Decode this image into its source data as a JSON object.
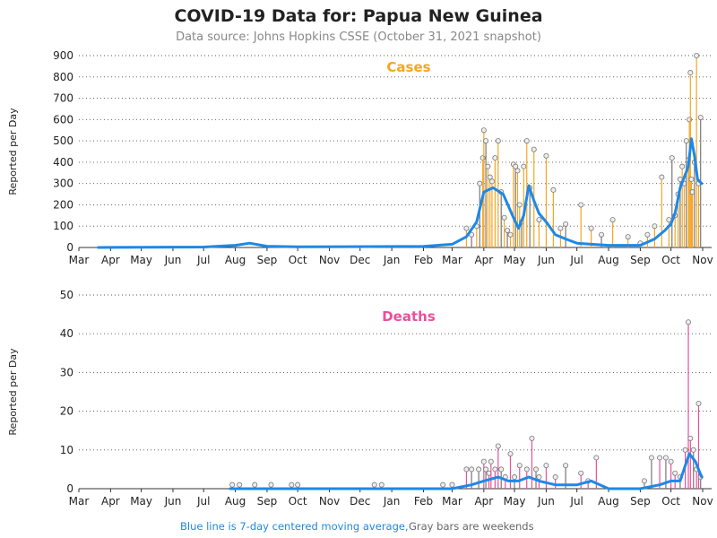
{
  "header": {
    "title": "COVID-19 Data for: Papua New Guinea",
    "subtitle": "Data source: Johns Hopkins CSSE (October 31, 2021 snapshot)"
  },
  "footer": {
    "blue_text": "Blue line is 7-day centered moving average,",
    "gray_text": "Gray bars are weekends"
  },
  "colors": {
    "cases": "#f5a623",
    "deaths": "#e8509b",
    "moving_average": "#1e88e5",
    "weekend": "#777777"
  },
  "chart_data": [
    {
      "type": "bar",
      "title": "Cases",
      "ylabel": "Reported per Day",
      "ylim": [
        0,
        900
      ],
      "yticks": [
        0,
        100,
        200,
        300,
        400,
        500,
        600,
        700,
        800,
        900
      ],
      "x_tick_labels": [
        "Mar",
        "Apr",
        "May",
        "Jun",
        "Jul",
        "Aug",
        "Sep",
        "Oct",
        "Nov",
        "Dec",
        "Jan",
        "Feb",
        "Mar",
        "Apr",
        "May",
        "Jun",
        "Jul",
        "Aug",
        "Sep",
        "Oct",
        "Nov"
      ],
      "x_range": [
        "2020-03-01",
        "2021-11-01"
      ],
      "grid": "horizontal-dotted",
      "bar_color": "#f5a623",
      "weekend_bar_color": "#777777",
      "series": [
        {
          "name": "Cases",
          "x": [
            "2021-03-15",
            "2021-03-20",
            "2021-03-25",
            "2021-03-28",
            "2021-03-31",
            "2021-04-01",
            "2021-04-03",
            "2021-04-05",
            "2021-04-07",
            "2021-04-09",
            "2021-04-12",
            "2021-04-15",
            "2021-04-18",
            "2021-04-21",
            "2021-04-24",
            "2021-04-27",
            "2021-04-30",
            "2021-05-02",
            "2021-05-04",
            "2021-05-06",
            "2021-05-08",
            "2021-05-10",
            "2021-05-13",
            "2021-05-16",
            "2021-05-20",
            "2021-05-25",
            "2021-06-01",
            "2021-06-08",
            "2021-06-15",
            "2021-06-20",
            "2021-07-05",
            "2021-07-15",
            "2021-07-25",
            "2021-08-05",
            "2021-08-20",
            "2021-09-01",
            "2021-09-08",
            "2021-09-15",
            "2021-09-22",
            "2021-09-29",
            "2021-10-02",
            "2021-10-05",
            "2021-10-08",
            "2021-10-10",
            "2021-10-12",
            "2021-10-14",
            "2021-10-16",
            "2021-10-18",
            "2021-10-19",
            "2021-10-20",
            "2021-10-21",
            "2021-10-22",
            "2021-10-24",
            "2021-10-26",
            "2021-10-28",
            "2021-10-30"
          ],
          "values": [
            90,
            60,
            100,
            300,
            420,
            550,
            500,
            380,
            330,
            310,
            420,
            500,
            260,
            140,
            80,
            60,
            390,
            380,
            360,
            200,
            120,
            380,
            500,
            280,
            460,
            130,
            430,
            270,
            90,
            110,
            200,
            90,
            60,
            130,
            50,
            20,
            60,
            100,
            330,
            130,
            420,
            150,
            250,
            320,
            380,
            300,
            500,
            410,
            600,
            820,
            320,
            260,
            400,
            900,
            300,
            610
          ]
        },
        {
          "name": "7-day average",
          "x": [
            "2020-03-20",
            "2020-07-01",
            "2020-08-01",
            "2020-08-15",
            "2020-09-01",
            "2020-10-01",
            "2021-02-01",
            "2021-03-01",
            "2021-03-15",
            "2021-03-25",
            "2021-04-01",
            "2021-04-10",
            "2021-04-20",
            "2021-04-30",
            "2021-05-05",
            "2021-05-10",
            "2021-05-15",
            "2021-05-20",
            "2021-05-25",
            "2021-06-01",
            "2021-06-10",
            "2021-06-20",
            "2021-07-01",
            "2021-07-15",
            "2021-08-01",
            "2021-09-01",
            "2021-09-15",
            "2021-09-25",
            "2021-10-01",
            "2021-10-05",
            "2021-10-10",
            "2021-10-14",
            "2021-10-18",
            "2021-10-21",
            "2021-10-24",
            "2021-10-27",
            "2021-10-31"
          ],
          "values": [
            0,
            2,
            10,
            20,
            6,
            3,
            5,
            15,
            50,
            120,
            260,
            280,
            250,
            140,
            90,
            150,
            290,
            220,
            160,
            120,
            60,
            40,
            20,
            15,
            10,
            10,
            40,
            80,
            110,
            160,
            280,
            330,
            380,
            510,
            430,
            320,
            300
          ]
        }
      ]
    },
    {
      "type": "bar",
      "title": "Deaths",
      "ylabel": "Reported per Day",
      "ylim": [
        0,
        50
      ],
      "yticks": [
        0,
        10,
        20,
        30,
        40,
        50
      ],
      "x_tick_labels": [
        "Mar",
        "Apr",
        "May",
        "Jun",
        "Jul",
        "Aug",
        "Sep",
        "Oct",
        "Nov",
        "Dec",
        "Jan",
        "Feb",
        "Mar",
        "Apr",
        "May",
        "Jun",
        "Jul",
        "Aug",
        "Sep",
        "Oct",
        "Nov"
      ],
      "x_range": [
        "2020-03-01",
        "2021-11-01"
      ],
      "grid": "horizontal-dotted",
      "bar_color": "#e8509b",
      "weekend_bar_color": "#777777",
      "series": [
        {
          "name": "Deaths",
          "x": [
            "2020-07-29",
            "2020-08-05",
            "2020-08-20",
            "2020-09-05",
            "2020-09-25",
            "2020-10-01",
            "2020-12-15",
            "2020-12-22",
            "2021-02-20",
            "2021-03-01",
            "2021-03-15",
            "2021-03-20",
            "2021-03-27",
            "2021-04-01",
            "2021-04-03",
            "2021-04-06",
            "2021-04-08",
            "2021-04-12",
            "2021-04-15",
            "2021-04-18",
            "2021-04-22",
            "2021-04-27",
            "2021-05-01",
            "2021-05-06",
            "2021-05-13",
            "2021-05-18",
            "2021-05-22",
            "2021-05-25",
            "2021-06-01",
            "2021-06-10",
            "2021-06-20",
            "2021-07-05",
            "2021-07-12",
            "2021-07-20",
            "2021-09-05",
            "2021-09-12",
            "2021-09-20",
            "2021-09-26",
            "2021-10-01",
            "2021-10-05",
            "2021-10-10",
            "2021-10-15",
            "2021-10-18",
            "2021-10-20",
            "2021-10-23",
            "2021-10-26",
            "2021-10-28",
            "2021-10-30"
          ],
          "values": [
            1,
            1,
            1,
            1,
            1,
            1,
            1,
            1,
            1,
            1,
            5,
            5,
            5,
            7,
            5,
            4,
            7,
            5,
            11,
            5,
            3,
            9,
            3,
            6,
            5,
            13,
            5,
            3,
            6,
            3,
            6,
            4,
            2,
            8,
            2,
            8,
            8,
            8,
            7,
            4,
            3,
            10,
            43,
            13,
            10,
            5,
            22,
            3
          ]
        },
        {
          "name": "7-day average",
          "x": [
            "2020-07-27",
            "2021-03-01",
            "2021-03-20",
            "2021-04-01",
            "2021-04-15",
            "2021-04-25",
            "2021-05-05",
            "2021-05-15",
            "2021-05-25",
            "2021-06-10",
            "2021-07-01",
            "2021-07-15",
            "2021-08-01",
            "2021-09-01",
            "2021-09-20",
            "2021-10-01",
            "2021-10-10",
            "2021-10-15",
            "2021-10-19",
            "2021-10-22",
            "2021-10-25",
            "2021-10-28",
            "2021-10-31"
          ],
          "values": [
            0,
            0,
            1,
            2,
            3,
            2,
            2,
            3,
            2,
            1,
            1,
            2,
            0,
            0,
            1,
            2,
            2,
            6,
            9,
            8,
            7,
            5,
            3
          ]
        }
      ]
    }
  ]
}
